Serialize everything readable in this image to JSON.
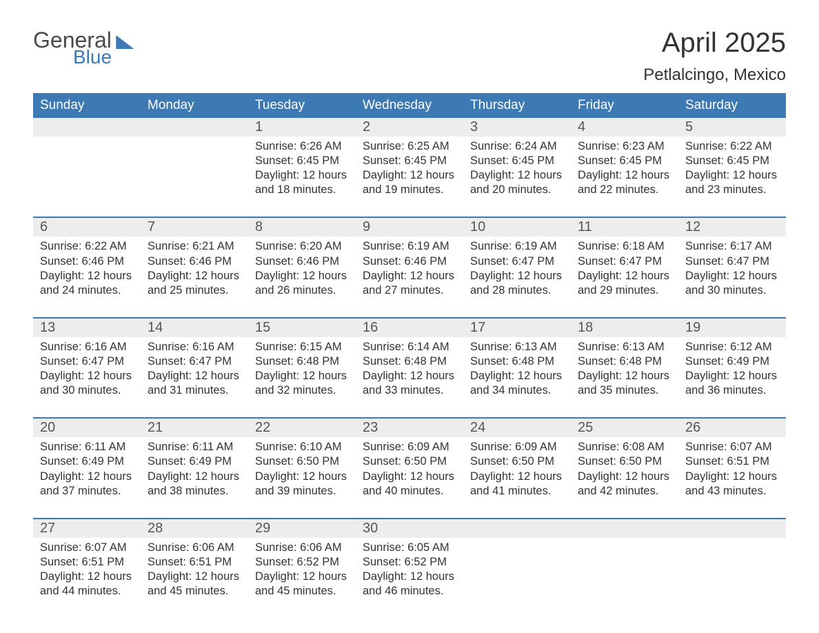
{
  "logo": {
    "general": "General",
    "blue": "Blue"
  },
  "title": "April 2025",
  "subtitle": "Petlalcingo, Mexico",
  "colors": {
    "header_bg": "#3d79b2",
    "header_text": "#ffffff",
    "daynum_bg": "#ededed",
    "daynum_text": "#555555",
    "body_text": "#333333",
    "week_border": "#3d79b2",
    "page_bg": "#ffffff"
  },
  "typography": {
    "title_fontsize": 40,
    "subtitle_fontsize": 24,
    "header_fontsize": 19,
    "daynum_fontsize": 20,
    "detail_fontsize": 16.5,
    "font_family": "Arial"
  },
  "week_headers": [
    "Sunday",
    "Monday",
    "Tuesday",
    "Wednesday",
    "Thursday",
    "Friday",
    "Saturday"
  ],
  "weeks": [
    {
      "days": [
        {
          "num": "",
          "sunrise": "",
          "sunset": "",
          "daylight1": "",
          "daylight2": ""
        },
        {
          "num": "",
          "sunrise": "",
          "sunset": "",
          "daylight1": "",
          "daylight2": ""
        },
        {
          "num": "1",
          "sunrise": "Sunrise: 6:26 AM",
          "sunset": "Sunset: 6:45 PM",
          "daylight1": "Daylight: 12 hours",
          "daylight2": "and 18 minutes."
        },
        {
          "num": "2",
          "sunrise": "Sunrise: 6:25 AM",
          "sunset": "Sunset: 6:45 PM",
          "daylight1": "Daylight: 12 hours",
          "daylight2": "and 19 minutes."
        },
        {
          "num": "3",
          "sunrise": "Sunrise: 6:24 AM",
          "sunset": "Sunset: 6:45 PM",
          "daylight1": "Daylight: 12 hours",
          "daylight2": "and 20 minutes."
        },
        {
          "num": "4",
          "sunrise": "Sunrise: 6:23 AM",
          "sunset": "Sunset: 6:45 PM",
          "daylight1": "Daylight: 12 hours",
          "daylight2": "and 22 minutes."
        },
        {
          "num": "5",
          "sunrise": "Sunrise: 6:22 AM",
          "sunset": "Sunset: 6:45 PM",
          "daylight1": "Daylight: 12 hours",
          "daylight2": "and 23 minutes."
        }
      ]
    },
    {
      "days": [
        {
          "num": "6",
          "sunrise": "Sunrise: 6:22 AM",
          "sunset": "Sunset: 6:46 PM",
          "daylight1": "Daylight: 12 hours",
          "daylight2": "and 24 minutes."
        },
        {
          "num": "7",
          "sunrise": "Sunrise: 6:21 AM",
          "sunset": "Sunset: 6:46 PM",
          "daylight1": "Daylight: 12 hours",
          "daylight2": "and 25 minutes."
        },
        {
          "num": "8",
          "sunrise": "Sunrise: 6:20 AM",
          "sunset": "Sunset: 6:46 PM",
          "daylight1": "Daylight: 12 hours",
          "daylight2": "and 26 minutes."
        },
        {
          "num": "9",
          "sunrise": "Sunrise: 6:19 AM",
          "sunset": "Sunset: 6:46 PM",
          "daylight1": "Daylight: 12 hours",
          "daylight2": "and 27 minutes."
        },
        {
          "num": "10",
          "sunrise": "Sunrise: 6:19 AM",
          "sunset": "Sunset: 6:47 PM",
          "daylight1": "Daylight: 12 hours",
          "daylight2": "and 28 minutes."
        },
        {
          "num": "11",
          "sunrise": "Sunrise: 6:18 AM",
          "sunset": "Sunset: 6:47 PM",
          "daylight1": "Daylight: 12 hours",
          "daylight2": "and 29 minutes."
        },
        {
          "num": "12",
          "sunrise": "Sunrise: 6:17 AM",
          "sunset": "Sunset: 6:47 PM",
          "daylight1": "Daylight: 12 hours",
          "daylight2": "and 30 minutes."
        }
      ]
    },
    {
      "days": [
        {
          "num": "13",
          "sunrise": "Sunrise: 6:16 AM",
          "sunset": "Sunset: 6:47 PM",
          "daylight1": "Daylight: 12 hours",
          "daylight2": "and 30 minutes."
        },
        {
          "num": "14",
          "sunrise": "Sunrise: 6:16 AM",
          "sunset": "Sunset: 6:47 PM",
          "daylight1": "Daylight: 12 hours",
          "daylight2": "and 31 minutes."
        },
        {
          "num": "15",
          "sunrise": "Sunrise: 6:15 AM",
          "sunset": "Sunset: 6:48 PM",
          "daylight1": "Daylight: 12 hours",
          "daylight2": "and 32 minutes."
        },
        {
          "num": "16",
          "sunrise": "Sunrise: 6:14 AM",
          "sunset": "Sunset: 6:48 PM",
          "daylight1": "Daylight: 12 hours",
          "daylight2": "and 33 minutes."
        },
        {
          "num": "17",
          "sunrise": "Sunrise: 6:13 AM",
          "sunset": "Sunset: 6:48 PM",
          "daylight1": "Daylight: 12 hours",
          "daylight2": "and 34 minutes."
        },
        {
          "num": "18",
          "sunrise": "Sunrise: 6:13 AM",
          "sunset": "Sunset: 6:48 PM",
          "daylight1": "Daylight: 12 hours",
          "daylight2": "and 35 minutes."
        },
        {
          "num": "19",
          "sunrise": "Sunrise: 6:12 AM",
          "sunset": "Sunset: 6:49 PM",
          "daylight1": "Daylight: 12 hours",
          "daylight2": "and 36 minutes."
        }
      ]
    },
    {
      "days": [
        {
          "num": "20",
          "sunrise": "Sunrise: 6:11 AM",
          "sunset": "Sunset: 6:49 PM",
          "daylight1": "Daylight: 12 hours",
          "daylight2": "and 37 minutes."
        },
        {
          "num": "21",
          "sunrise": "Sunrise: 6:11 AM",
          "sunset": "Sunset: 6:49 PM",
          "daylight1": "Daylight: 12 hours",
          "daylight2": "and 38 minutes."
        },
        {
          "num": "22",
          "sunrise": "Sunrise: 6:10 AM",
          "sunset": "Sunset: 6:50 PM",
          "daylight1": "Daylight: 12 hours",
          "daylight2": "and 39 minutes."
        },
        {
          "num": "23",
          "sunrise": "Sunrise: 6:09 AM",
          "sunset": "Sunset: 6:50 PM",
          "daylight1": "Daylight: 12 hours",
          "daylight2": "and 40 minutes."
        },
        {
          "num": "24",
          "sunrise": "Sunrise: 6:09 AM",
          "sunset": "Sunset: 6:50 PM",
          "daylight1": "Daylight: 12 hours",
          "daylight2": "and 41 minutes."
        },
        {
          "num": "25",
          "sunrise": "Sunrise: 6:08 AM",
          "sunset": "Sunset: 6:50 PM",
          "daylight1": "Daylight: 12 hours",
          "daylight2": "and 42 minutes."
        },
        {
          "num": "26",
          "sunrise": "Sunrise: 6:07 AM",
          "sunset": "Sunset: 6:51 PM",
          "daylight1": "Daylight: 12 hours",
          "daylight2": "and 43 minutes."
        }
      ]
    },
    {
      "days": [
        {
          "num": "27",
          "sunrise": "Sunrise: 6:07 AM",
          "sunset": "Sunset: 6:51 PM",
          "daylight1": "Daylight: 12 hours",
          "daylight2": "and 44 minutes."
        },
        {
          "num": "28",
          "sunrise": "Sunrise: 6:06 AM",
          "sunset": "Sunset: 6:51 PM",
          "daylight1": "Daylight: 12 hours",
          "daylight2": "and 45 minutes."
        },
        {
          "num": "29",
          "sunrise": "Sunrise: 6:06 AM",
          "sunset": "Sunset: 6:52 PM",
          "daylight1": "Daylight: 12 hours",
          "daylight2": "and 45 minutes."
        },
        {
          "num": "30",
          "sunrise": "Sunrise: 6:05 AM",
          "sunset": "Sunset: 6:52 PM",
          "daylight1": "Daylight: 12 hours",
          "daylight2": "and 46 minutes."
        },
        {
          "num": "",
          "sunrise": "",
          "sunset": "",
          "daylight1": "",
          "daylight2": ""
        },
        {
          "num": "",
          "sunrise": "",
          "sunset": "",
          "daylight1": "",
          "daylight2": ""
        },
        {
          "num": "",
          "sunrise": "",
          "sunset": "",
          "daylight1": "",
          "daylight2": ""
        }
      ]
    }
  ]
}
